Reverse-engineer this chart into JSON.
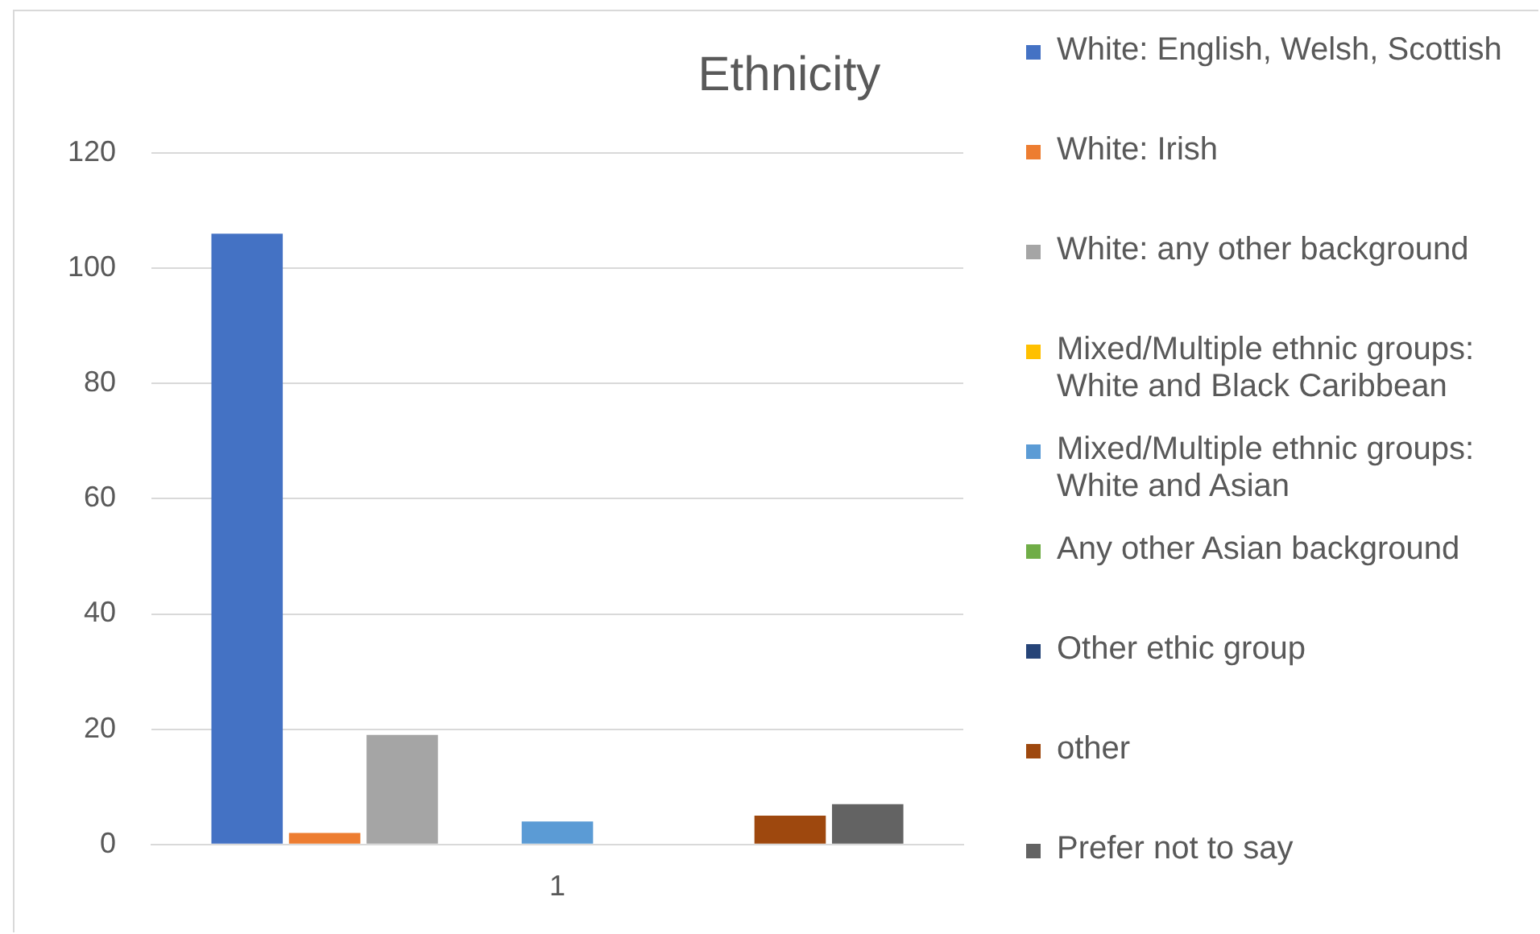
{
  "chart_data": {
    "type": "bar",
    "title": "Ethnicity",
    "categories": [
      "1"
    ],
    "series": [
      {
        "name": "White: English, Welsh, Scottish",
        "color": "#4472c4",
        "values": [
          106
        ]
      },
      {
        "name": "White: Irish",
        "color": "#ed7d31",
        "values": [
          2
        ]
      },
      {
        "name": "White: any other background",
        "color": "#a5a5a5",
        "values": [
          19
        ]
      },
      {
        "name": "Mixed/Multiple ethnic groups: White and Black Caribbean",
        "color": "#ffc000",
        "values": [
          0
        ]
      },
      {
        "name": "Mixed/Multiple ethnic groups: White and Asian",
        "color": "#5b9bd5",
        "values": [
          4
        ]
      },
      {
        "name": "Any other Asian background",
        "color": "#70ad47",
        "values": [
          0
        ]
      },
      {
        "name": "Other ethic group",
        "color": "#264478",
        "values": [
          0
        ]
      },
      {
        "name": "other",
        "color": "#9e480e",
        "values": [
          5
        ]
      },
      {
        "name": "Prefer not to say",
        "color": "#636363",
        "values": [
          7
        ]
      }
    ],
    "ylim": [
      0,
      120
    ],
    "yticks": [
      0,
      20,
      40,
      60,
      80,
      100,
      120
    ],
    "grid": "y",
    "legend": "right"
  }
}
